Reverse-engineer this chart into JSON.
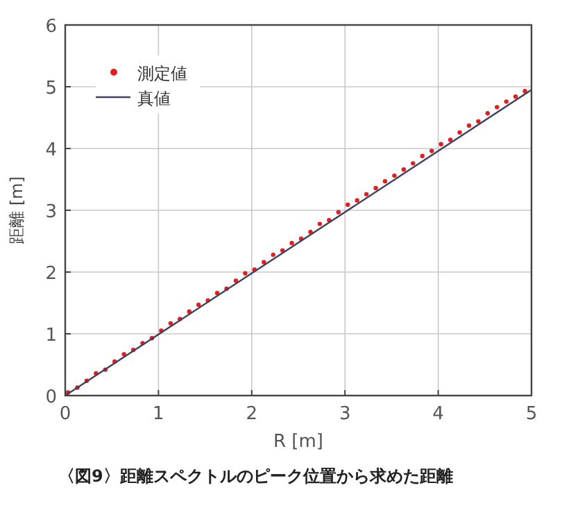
{
  "chart_data": {
    "type": "scatter",
    "xlabel": "R [m]",
    "ylabel": "距離 [m]",
    "annotations": [
      "〈図9〉距離スペクトルのピーク位置から求めた距離"
    ],
    "xlim": [
      0,
      5
    ],
    "ylim": [
      0,
      6
    ],
    "xticks": [
      0,
      1,
      2,
      3,
      4,
      5
    ],
    "yticks": [
      0,
      1,
      2,
      3,
      4,
      5,
      6
    ],
    "grid": true,
    "legend": "top left",
    "series": [
      {
        "name": "測定値",
        "marker": "circle",
        "color": "#e02020",
        "x": [
          0.03,
          0.13,
          0.23,
          0.33,
          0.43,
          0.53,
          0.63,
          0.73,
          0.83,
          0.93,
          1.03,
          1.13,
          1.23,
          1.33,
          1.43,
          1.53,
          1.63,
          1.73,
          1.83,
          1.93,
          2.03,
          2.13,
          2.23,
          2.33,
          2.43,
          2.53,
          2.63,
          2.73,
          2.83,
          2.93,
          3.03,
          3.13,
          3.23,
          3.33,
          3.43,
          3.53,
          3.63,
          3.73,
          3.83,
          3.93,
          4.03,
          4.13,
          4.23,
          4.33,
          4.43,
          4.53,
          4.63,
          4.73,
          4.83,
          4.93
        ],
        "values": [
          0.05,
          0.13,
          0.24,
          0.36,
          0.42,
          0.55,
          0.67,
          0.74,
          0.85,
          0.93,
          1.05,
          1.17,
          1.24,
          1.36,
          1.47,
          1.54,
          1.66,
          1.73,
          1.86,
          1.98,
          2.04,
          2.16,
          2.28,
          2.35,
          2.47,
          2.54,
          2.65,
          2.78,
          2.84,
          2.97,
          3.09,
          3.16,
          3.26,
          3.36,
          3.47,
          3.56,
          3.66,
          3.76,
          3.88,
          3.96,
          4.07,
          4.14,
          4.26,
          4.37,
          4.44,
          4.57,
          4.67,
          4.76,
          4.84,
          4.93
        ]
      },
      {
        "name": "真値",
        "type": "line",
        "color": "#404060",
        "x": [
          0,
          5
        ],
        "values": [
          0,
          4.95
        ]
      }
    ]
  }
}
